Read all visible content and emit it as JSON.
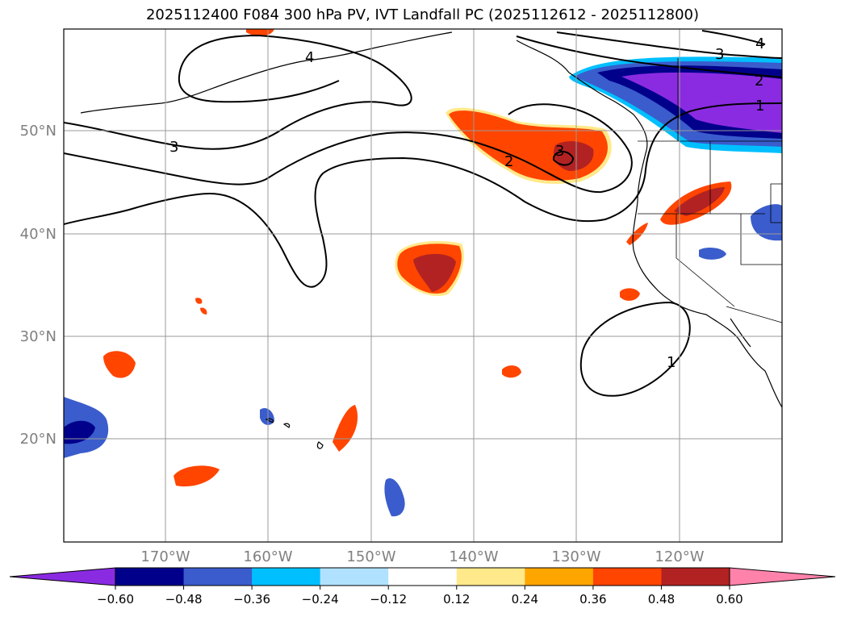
{
  "title": "2025112400 F084 300 hPa PV, IVT Landfall PC (2025112612 - 2025112800)",
  "map": {
    "lat_labels": [
      "50°N",
      "40°N",
      "30°N",
      "20°N"
    ],
    "lon_labels": [
      "170°W",
      "160°W",
      "150°W",
      "140°W",
      "130°W",
      "120°W"
    ],
    "contour_labels": [
      "3",
      "2",
      "3",
      "3",
      "2",
      "1",
      "4",
      "1",
      "4"
    ]
  },
  "colorbar": {
    "ticks": [
      "−0.60",
      "−0.48",
      "−0.36",
      "−0.24",
      "−0.12",
      "0.12",
      "0.24",
      "0.36",
      "0.48",
      "0.60"
    ],
    "colors": [
      "#8a2be2",
      "#00008b",
      "#3a5ccc",
      "#00bfff",
      "#b0e2ff",
      "#ffffff",
      "#ffe98a",
      "#ffa500",
      "#ff4500",
      "#b22222",
      "#ff82ab"
    ]
  }
}
